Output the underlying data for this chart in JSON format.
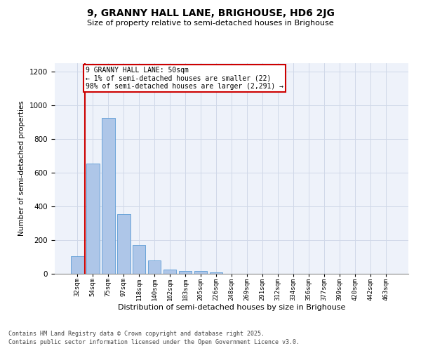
{
  "title1": "9, GRANNY HALL LANE, BRIGHOUSE, HD6 2JG",
  "title2": "Size of property relative to semi-detached houses in Brighouse",
  "xlabel": "Distribution of semi-detached houses by size in Brighouse",
  "ylabel": "Number of semi-detached properties",
  "categories": [
    "32sqm",
    "54sqm",
    "75sqm",
    "97sqm",
    "118sqm",
    "140sqm",
    "162sqm",
    "183sqm",
    "205sqm",
    "226sqm",
    "248sqm",
    "269sqm",
    "291sqm",
    "312sqm",
    "334sqm",
    "356sqm",
    "377sqm",
    "399sqm",
    "420sqm",
    "442sqm",
    "463sqm"
  ],
  "values": [
    105,
    655,
    925,
    355,
    170,
    80,
    25,
    15,
    15,
    10,
    0,
    0,
    0,
    0,
    0,
    0,
    0,
    0,
    0,
    0,
    0
  ],
  "bar_color": "#aec6e8",
  "bar_edge_color": "#5b9bd5",
  "subject_line_color": "#cc0000",
  "annotation_text": "9 GRANNY HALL LANE: 50sqm\n← 1% of semi-detached houses are smaller (22)\n98% of semi-detached houses are larger (2,291) →",
  "annotation_box_color": "#cc0000",
  "ylim": [
    0,
    1250
  ],
  "yticks": [
    0,
    200,
    400,
    600,
    800,
    1000,
    1200
  ],
  "grid_color": "#d0d8e8",
  "background_color": "#eef2fa",
  "footer1": "Contains HM Land Registry data © Crown copyright and database right 2025.",
  "footer2": "Contains public sector information licensed under the Open Government Licence v3.0."
}
